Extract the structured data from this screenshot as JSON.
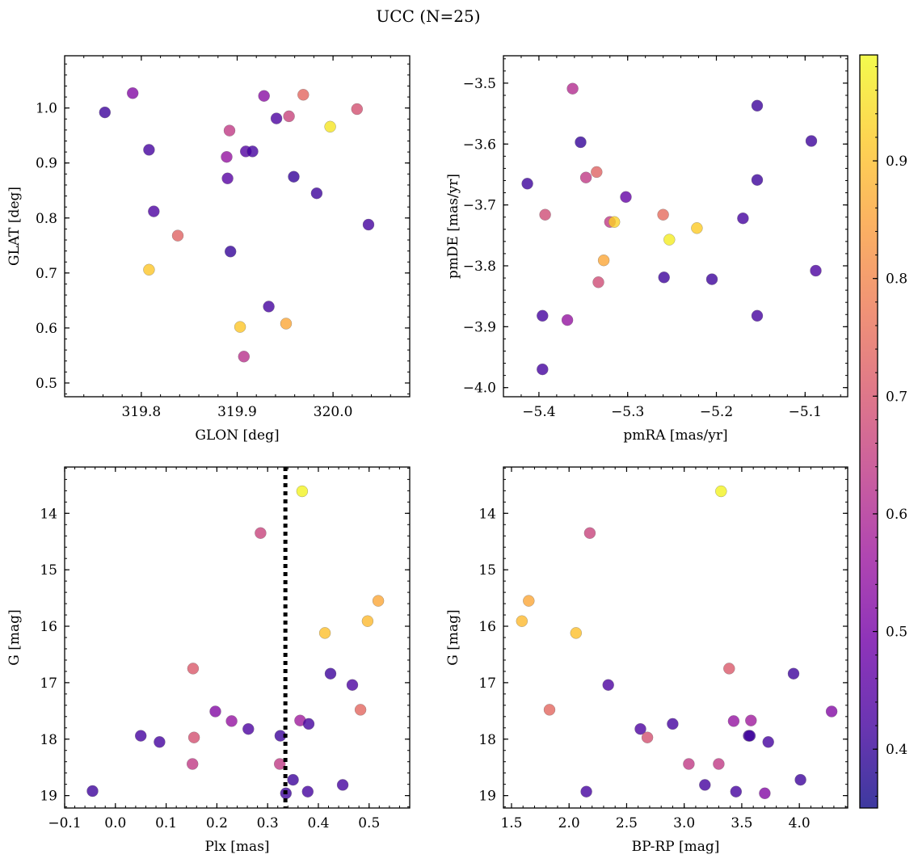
{
  "figure": {
    "title": "UCC (N=25)"
  },
  "chart_data": [
    {
      "type": "scatter",
      "xlabel": "GLON [deg]",
      "ylabel": "GLAT [deg]",
      "xlim": [
        319.72,
        320.08
      ],
      "ylim": [
        0.475,
        1.095
      ],
      "y_inverted": false,
      "xticks": [
        319.8,
        319.9,
        320.0
      ],
      "xticklabels": [
        "319.8",
        "319.9",
        "320.0"
      ],
      "yticks": [
        0.5,
        0.6,
        0.7,
        0.8,
        0.9,
        1.0
      ],
      "yticklabels": [
        "0.5",
        "0.6",
        "0.7",
        "0.8",
        "0.9",
        "1.0"
      ],
      "points": [
        {
          "x": 319.762,
          "y": 0.992,
          "c": 0.41
        },
        {
          "x": 319.791,
          "y": 1.027,
          "c": 0.52
        },
        {
          "x": 319.808,
          "y": 0.924,
          "c": 0.42
        },
        {
          "x": 319.813,
          "y": 0.812,
          "c": 0.43
        },
        {
          "x": 319.808,
          "y": 0.706,
          "c": 0.91
        },
        {
          "x": 319.838,
          "y": 0.768,
          "c": 0.73
        },
        {
          "x": 319.889,
          "y": 0.911,
          "c": 0.55
        },
        {
          "x": 319.89,
          "y": 0.872,
          "c": 0.45
        },
        {
          "x": 319.892,
          "y": 0.959,
          "c": 0.64
        },
        {
          "x": 319.893,
          "y": 0.739,
          "c": 0.4
        },
        {
          "x": 319.903,
          "y": 0.602,
          "c": 0.91
        },
        {
          "x": 319.907,
          "y": 0.548,
          "c": 0.62
        },
        {
          "x": 319.909,
          "y": 0.921,
          "c": 0.44
        },
        {
          "x": 319.916,
          "y": 0.921,
          "c": 0.42
        },
        {
          "x": 319.928,
          "y": 1.022,
          "c": 0.53
        },
        {
          "x": 319.933,
          "y": 0.639,
          "c": 0.42
        },
        {
          "x": 319.941,
          "y": 0.981,
          "c": 0.43
        },
        {
          "x": 319.951,
          "y": 0.608,
          "c": 0.86
        },
        {
          "x": 319.954,
          "y": 0.985,
          "c": 0.66
        },
        {
          "x": 319.959,
          "y": 0.875,
          "c": 0.4
        },
        {
          "x": 319.969,
          "y": 1.024,
          "c": 0.74
        },
        {
          "x": 319.983,
          "y": 0.845,
          "c": 0.41
        },
        {
          "x": 319.997,
          "y": 0.966,
          "c": 0.96
        },
        {
          "x": 320.025,
          "y": 0.998,
          "c": 0.69
        },
        {
          "x": 320.037,
          "y": 0.788,
          "c": 0.42
        }
      ]
    },
    {
      "type": "scatter",
      "xlabel": "pmRA [mas/yr]",
      "ylabel": "pmDE [mas/yr]",
      "xlim": [
        -5.44,
        -5.052
      ],
      "ylim": [
        -4.015,
        -3.455
      ],
      "y_inverted": false,
      "xticks": [
        -5.4,
        -5.3,
        -5.2,
        -5.1
      ],
      "xticklabels": [
        "−5.4",
        "−5.3",
        "−5.2",
        "−5.1"
      ],
      "yticks": [
        -4.0,
        -3.9,
        -3.8,
        -3.7,
        -3.6,
        -3.5
      ],
      "yticklabels": [
        "−4.0",
        "−3.9",
        "−3.8",
        "−3.7",
        "−3.6",
        "−3.5"
      ],
      "points": [
        {
          "x": -5.413,
          "y": -3.665,
          "c": 0.41
        },
        {
          "x": -5.396,
          "y": -3.882,
          "c": 0.42
        },
        {
          "x": -5.396,
          "y": -3.97,
          "c": 0.42
        },
        {
          "x": -5.393,
          "y": -3.716,
          "c": 0.68
        },
        {
          "x": -5.368,
          "y": -3.889,
          "c": 0.55
        },
        {
          "x": -5.362,
          "y": -3.509,
          "c": 0.61
        },
        {
          "x": -5.353,
          "y": -3.597,
          "c": 0.4
        },
        {
          "x": -5.347,
          "y": -3.655,
          "c": 0.64
        },
        {
          "x": -5.335,
          "y": -3.646,
          "c": 0.73
        },
        {
          "x": -5.333,
          "y": -3.827,
          "c": 0.68
        },
        {
          "x": -5.327,
          "y": -3.791,
          "c": 0.86
        },
        {
          "x": -5.32,
          "y": -3.728,
          "c": 0.64
        },
        {
          "x": -5.315,
          "y": -3.728,
          "c": 0.93
        },
        {
          "x": -5.302,
          "y": -3.687,
          "c": 0.47
        },
        {
          "x": -5.26,
          "y": -3.716,
          "c": 0.75
        },
        {
          "x": -5.259,
          "y": -3.819,
          "c": 0.41
        },
        {
          "x": -5.253,
          "y": -3.757,
          "c": 0.97
        },
        {
          "x": -5.222,
          "y": -3.738,
          "c": 0.92
        },
        {
          "x": -5.205,
          "y": -3.822,
          "c": 0.41
        },
        {
          "x": -5.17,
          "y": -3.722,
          "c": 0.42
        },
        {
          "x": -5.154,
          "y": -3.537,
          "c": 0.41
        },
        {
          "x": -5.154,
          "y": -3.659,
          "c": 0.41
        },
        {
          "x": -5.154,
          "y": -3.882,
          "c": 0.42
        },
        {
          "x": -5.093,
          "y": -3.595,
          "c": 0.41
        },
        {
          "x": -5.088,
          "y": -3.808,
          "c": 0.43
        }
      ]
    },
    {
      "type": "scatter",
      "xlabel": "Plx [mas]",
      "ylabel": "G [mag]",
      "xlim": [
        -0.1,
        0.58
      ],
      "ylim": [
        19.22,
        13.18
      ],
      "y_inverted": true,
      "xticks": [
        -0.1,
        0.0,
        0.1,
        0.2,
        0.3,
        0.4,
        0.5
      ],
      "xticklabels": [
        "−0.1",
        "0.0",
        "0.1",
        "0.2",
        "0.3",
        "0.4",
        "0.5"
      ],
      "yticks": [
        14,
        15,
        16,
        17,
        18,
        19
      ],
      "yticklabels": [
        "14",
        "15",
        "16",
        "17",
        "18",
        "19"
      ],
      "vline": {
        "x": 0.335,
        "style": "dotted"
      },
      "points": [
        {
          "x": -0.045,
          "y": 18.92,
          "c": 0.41
        },
        {
          "x": 0.05,
          "y": 17.94,
          "c": 0.42
        },
        {
          "x": 0.087,
          "y": 18.05,
          "c": 0.42
        },
        {
          "x": 0.153,
          "y": 16.75,
          "c": 0.71
        },
        {
          "x": 0.155,
          "y": 17.97,
          "c": 0.69
        },
        {
          "x": 0.152,
          "y": 18.44,
          "c": 0.64
        },
        {
          "x": 0.197,
          "y": 17.51,
          "c": 0.52
        },
        {
          "x": 0.229,
          "y": 17.68,
          "c": 0.55
        },
        {
          "x": 0.262,
          "y": 17.82,
          "c": 0.43
        },
        {
          "x": 0.286,
          "y": 14.35,
          "c": 0.66
        },
        {
          "x": 0.325,
          "y": 17.94,
          "c": 0.41
        },
        {
          "x": 0.324,
          "y": 18.44,
          "c": 0.64
        },
        {
          "x": 0.336,
          "y": 18.96,
          "c": 0.41
        },
        {
          "x": 0.35,
          "y": 18.72,
          "c": 0.41
        },
        {
          "x": 0.364,
          "y": 17.67,
          "c": 0.57
        },
        {
          "x": 0.368,
          "y": 13.61,
          "c": 0.98
        },
        {
          "x": 0.381,
          "y": 17.73,
          "c": 0.42
        },
        {
          "x": 0.379,
          "y": 18.93,
          "c": 0.42
        },
        {
          "x": 0.413,
          "y": 16.12,
          "c": 0.9
        },
        {
          "x": 0.424,
          "y": 16.84,
          "c": 0.41
        },
        {
          "x": 0.448,
          "y": 18.81,
          "c": 0.42
        },
        {
          "x": 0.467,
          "y": 17.04,
          "c": 0.43
        },
        {
          "x": 0.483,
          "y": 17.48,
          "c": 0.74
        },
        {
          "x": 0.497,
          "y": 15.91,
          "c": 0.89
        },
        {
          "x": 0.518,
          "y": 15.55,
          "c": 0.86
        }
      ]
    },
    {
      "type": "scatter",
      "xlabel": "BP-RP [mag]",
      "ylabel": "G [mag]",
      "xlim": [
        1.43,
        4.42
      ],
      "ylim": [
        19.22,
        13.18
      ],
      "y_inverted": true,
      "xticks": [
        1.5,
        2.0,
        2.5,
        3.0,
        3.5,
        4.0
      ],
      "xticklabels": [
        "1.5",
        "2.0",
        "2.5",
        "3.0",
        "3.5",
        "4.0"
      ],
      "yticks": [
        14,
        15,
        16,
        17,
        18,
        19
      ],
      "yticklabels": [
        "14",
        "15",
        "16",
        "17",
        "18",
        "19"
      ],
      "points": [
        {
          "x": 1.59,
          "y": 15.91,
          "c": 0.89
        },
        {
          "x": 1.65,
          "y": 15.55,
          "c": 0.86
        },
        {
          "x": 1.83,
          "y": 17.48,
          "c": 0.74
        },
        {
          "x": 2.06,
          "y": 16.12,
          "c": 0.9
        },
        {
          "x": 2.15,
          "y": 18.93,
          "c": 0.42
        },
        {
          "x": 2.18,
          "y": 14.35,
          "c": 0.66
        },
        {
          "x": 2.34,
          "y": 17.04,
          "c": 0.43
        },
        {
          "x": 2.62,
          "y": 17.82,
          "c": 0.43
        },
        {
          "x": 2.68,
          "y": 17.97,
          "c": 0.69
        },
        {
          "x": 2.9,
          "y": 17.73,
          "c": 0.42
        },
        {
          "x": 3.04,
          "y": 18.44,
          "c": 0.64
        },
        {
          "x": 3.18,
          "y": 18.81,
          "c": 0.42
        },
        {
          "x": 3.3,
          "y": 18.44,
          "c": 0.64
        },
        {
          "x": 3.32,
          "y": 13.61,
          "c": 0.98
        },
        {
          "x": 3.39,
          "y": 16.75,
          "c": 0.71
        },
        {
          "x": 3.43,
          "y": 17.68,
          "c": 0.55
        },
        {
          "x": 3.45,
          "y": 18.93,
          "c": 0.42
        },
        {
          "x": 3.56,
          "y": 17.94,
          "c": 0.42
        },
        {
          "x": 3.57,
          "y": 17.94,
          "c": 0.41
        },
        {
          "x": 3.58,
          "y": 17.67,
          "c": 0.57
        },
        {
          "x": 3.7,
          "y": 18.96,
          "c": 0.52
        },
        {
          "x": 3.73,
          "y": 18.05,
          "c": 0.42
        },
        {
          "x": 3.95,
          "y": 16.84,
          "c": 0.41
        },
        {
          "x": 4.01,
          "y": 18.72,
          "c": 0.41
        },
        {
          "x": 4.28,
          "y": 17.51,
          "c": 0.52
        }
      ]
    }
  ],
  "colorbar": {
    "cmap": "plasma",
    "vmin": 0.35,
    "vmax": 0.99,
    "ticks": [
      0.4,
      0.5,
      0.6,
      0.7,
      0.8,
      0.9
    ],
    "ticklabels": [
      "0.4",
      "0.5",
      "0.6",
      "0.7",
      "0.8",
      "0.9"
    ]
  },
  "colors": {
    "plasma_stops": [
      "#0d0887",
      "#46039f",
      "#7201a8",
      "#9c179e",
      "#bd3786",
      "#d8576b",
      "#ed7953",
      "#fb9f3a",
      "#fdca26",
      "#f0f921"
    ],
    "marker_alpha": 0.8,
    "marker_edge": "#666666",
    "axis": "#000000"
  }
}
